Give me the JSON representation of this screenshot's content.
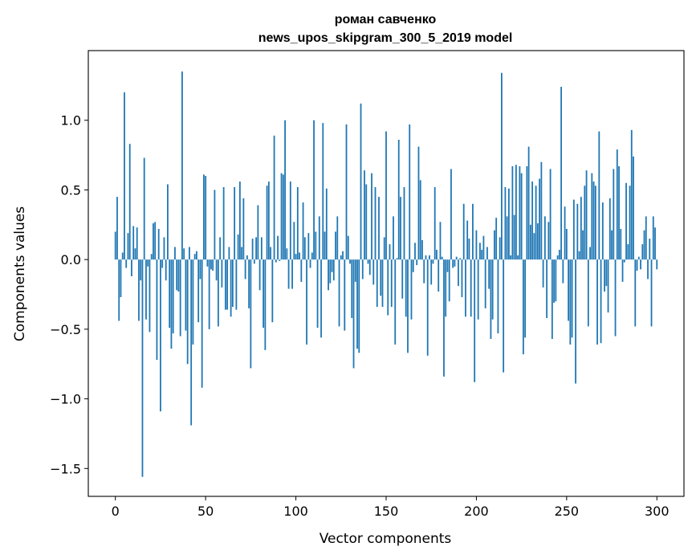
{
  "chart_data": {
    "type": "bar",
    "title_line1": "роман савченко",
    "title_line2": "news_upos_skipgram_300_5_2019 model",
    "xlabel": "Vector components",
    "ylabel": "Components values",
    "xlim": [
      -15,
      315
    ],
    "ylim": [
      -1.7,
      1.5
    ],
    "x_ticks": [
      0,
      50,
      100,
      150,
      200,
      250,
      300
    ],
    "x_tick_labels": [
      "0",
      "50",
      "100",
      "150",
      "200",
      "250",
      "300"
    ],
    "y_ticks": [
      -1.5,
      -1.0,
      -0.5,
      0.0,
      0.5,
      1.0
    ],
    "y_tick_labels": [
      "−1.5",
      "−1.0",
      "−0.5",
      "0.0",
      "0.5",
      "1.0"
    ],
    "bar_color": "#1f77b4",
    "values": [
      0.2,
      0.45,
      -0.44,
      -0.27,
      0.05,
      1.2,
      -0.06,
      0.19,
      0.83,
      -0.12,
      0.24,
      0.08,
      0.23,
      -0.44,
      -0.15,
      -1.56,
      0.73,
      -0.43,
      -0.05,
      -0.52,
      0.04,
      0.26,
      0.27,
      -0.72,
      0.22,
      -1.09,
      -0.06,
      0.16,
      -0.15,
      0.54,
      -0.49,
      -0.64,
      -0.53,
      0.09,
      -0.22,
      -0.23,
      -0.55,
      1.35,
      0.08,
      -0.51,
      -0.75,
      0.09,
      -1.19,
      -0.61,
      0.04,
      0.06,
      -0.45,
      -0.14,
      -0.92,
      0.61,
      0.6,
      -0.05,
      -0.5,
      -0.07,
      -0.08,
      0.5,
      -0.15,
      -0.48,
      0.16,
      -0.2,
      0.52,
      -0.36,
      -0.36,
      0.09,
      -0.41,
      -0.34,
      0.52,
      -0.36,
      0.18,
      0.56,
      0.09,
      0.44,
      -0.14,
      0.03,
      -0.35,
      -0.78,
      0.15,
      -0.03,
      0.16,
      0.39,
      -0.22,
      0.16,
      -0.49,
      -0.65,
      0.53,
      0.56,
      0.09,
      -0.45,
      0.89,
      -0.02,
      0.17,
      -0.01,
      0.62,
      0.61,
      1.0,
      0.08,
      -0.21,
      0.56,
      -0.21,
      0.27,
      0.04,
      0.52,
      0.05,
      -0.16,
      0.41,
      0.16,
      -0.61,
      0.19,
      -0.06,
      0.05,
      1.0,
      0.2,
      -0.49,
      0.31,
      -0.56,
      0.98,
      0.2,
      0.51,
      -0.22,
      -0.17,
      -0.09,
      -0.15,
      0.2,
      0.31,
      -0.48,
      0.03,
      0.06,
      -0.51,
      0.97,
      0.17,
      -0.03,
      -0.42,
      -0.78,
      -0.16,
      -0.64,
      -0.67,
      1.12,
      -0.14,
      0.64,
      0.54,
      -0.03,
      -0.11,
      0.62,
      -0.18,
      0.52,
      -0.34,
      0.45,
      -0.26,
      -0.34,
      0.16,
      0.92,
      -0.4,
      0.11,
      -0.34,
      0.31,
      -0.61,
      0.01,
      0.86,
      0.45,
      -0.28,
      0.52,
      -0.41,
      -0.67,
      0.97,
      -0.43,
      -0.09,
      0.12,
      -0.04,
      0.81,
      0.57,
      0.14,
      -0.17,
      0.03,
      -0.69,
      0.03,
      -0.18,
      -0.03,
      0.52,
      0.07,
      -0.23,
      0.27,
      0.02,
      -0.84,
      -0.41,
      -0.09,
      -0.3,
      0.65,
      -0.06,
      -0.05,
      0.02,
      -0.19,
      0.01,
      -0.27,
      0.4,
      -0.41,
      0.28,
      0.15,
      -0.41,
      0.4,
      -0.88,
      0.21,
      -0.43,
      0.12,
      0.07,
      0.17,
      -0.35,
      0.09,
      -0.21,
      -0.57,
      -0.43,
      0.21,
      0.3,
      -0.53,
      0.16,
      1.34,
      -0.81,
      0.52,
      0.31,
      0.51,
      0.03,
      0.67,
      0.32,
      0.68,
      0.03,
      0.67,
      0.62,
      -0.68,
      -0.56,
      0.67,
      0.81,
      0.25,
      0.56,
      0.19,
      0.53,
      0.26,
      0.58,
      0.7,
      -0.2,
      0.31,
      -0.42,
      0.27,
      0.65,
      -0.57,
      -0.31,
      -0.3,
      0.03,
      0.07,
      1.24,
      -0.17,
      0.38,
      0.22,
      -0.44,
      -0.61,
      -0.56,
      0.43,
      -0.89,
      0.4,
      0.06,
      0.45,
      0.21,
      0.53,
      0.64,
      -0.48,
      0.09,
      0.62,
      0.56,
      0.53,
      -0.61,
      0.92,
      -0.6,
      0.41,
      -0.23,
      -0.19,
      -0.38,
      0.44,
      0.21,
      0.65,
      -0.55,
      0.79,
      0.67,
      0.22,
      -0.16,
      -0.02,
      0.55,
      0.11,
      0.53,
      0.93,
      0.74,
      -0.48,
      -0.08,
      0.02,
      -0.07,
      0.11,
      0.21,
      0.31,
      -0.14,
      0.15,
      -0.48,
      0.31,
      0.23,
      -0.07
    ]
  }
}
